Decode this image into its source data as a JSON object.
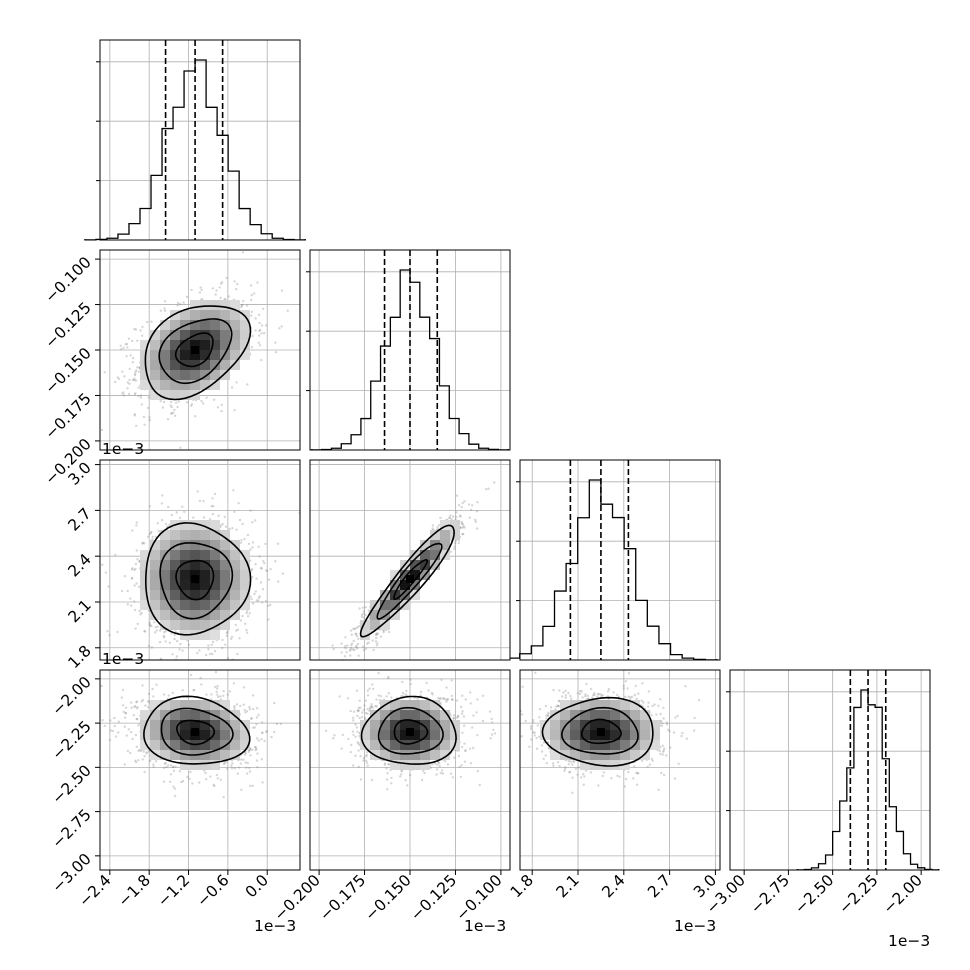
{
  "chart_data": {
    "type": "corner",
    "grid": true,
    "hist_peaks": [
      1.0,
      1.0,
      1.0,
      1.0
    ],
    "params": [
      {
        "mean": -1.1,
        "sd": 0.42,
        "quantiles": [
          -1.55,
          -1.1,
          -0.68
        ],
        "range": [
          -2.55,
          0.5
        ],
        "ticks": [
          -2.4,
          -1.8,
          -1.2,
          -0.6,
          0.0
        ],
        "tick_labels": [
          "−2.4",
          "−1.8",
          "−1.2",
          "−0.6",
          "0.0"
        ],
        "multiplier": "1e−3"
      },
      {
        "mean": -0.15,
        "sd": 0.0135,
        "quantiles": [
          -0.164,
          -0.15,
          -0.135
        ],
        "range": [
          -0.205,
          -0.095
        ],
        "ticks": [
          -0.2,
          -0.175,
          -0.15,
          -0.125,
          -0.1
        ],
        "tick_labels": [
          "−0.200",
          "−0.175",
          "−0.150",
          "−0.125",
          "−0.100"
        ],
        "multiplier": "1e−3"
      },
      {
        "mean": 2.25,
        "sd": 0.19,
        "quantiles": [
          2.05,
          2.25,
          2.43
        ],
        "range": [
          1.72,
          3.03
        ],
        "ticks": [
          1.8,
          2.1,
          2.4,
          2.7,
          3.0
        ],
        "tick_labels": [
          "1.8",
          "2.1",
          "2.4",
          "2.7",
          "3.0"
        ],
        "multiplier": "1e−3"
      },
      {
        "mean": -2.3,
        "sd": 0.1,
        "quantiles": [
          -2.4,
          -2.3,
          -2.2
        ],
        "range": [
          -3.08,
          -1.95
        ],
        "ticks": [
          -3.0,
          -2.75,
          -2.5,
          -2.25,
          -2.0
        ],
        "tick_labels": [
          "−3.00",
          "−2.75",
          "−2.50",
          "−2.25",
          "−2.00"
        ],
        "multiplier": "1e−3"
      }
    ],
    "correlations": [
      [
        0,
        1,
        0.35
      ],
      [
        0,
        2,
        0.0
      ],
      [
        0,
        3,
        -0.1
      ],
      [
        1,
        2,
        0.93
      ],
      [
        1,
        3,
        0.0
      ],
      [
        2,
        3,
        0.0
      ]
    ]
  }
}
